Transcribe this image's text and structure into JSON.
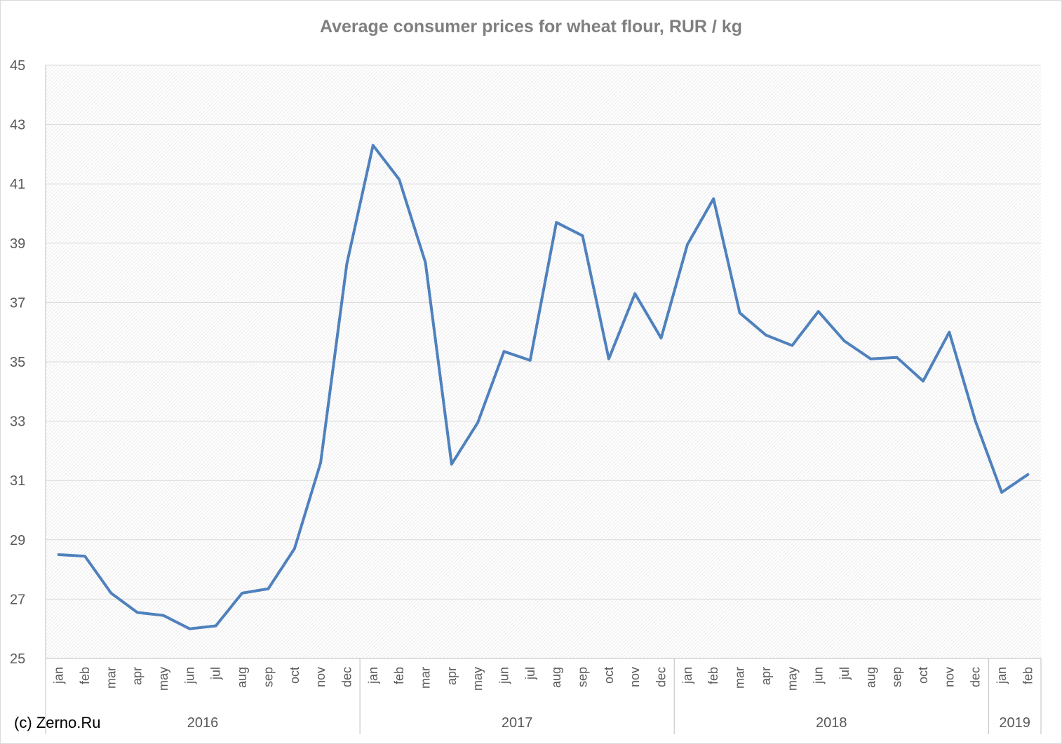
{
  "copyright": "(c) Zerno.Ru",
  "colors": {
    "line": "#4f81bd",
    "grid": "#d9d9d9",
    "axis": "#bfbfbf",
    "text": "#595959",
    "title": "#7f7f7f"
  },
  "chart_data": {
    "type": "line",
    "title": "Average consumer prices for wheat flour, RUR / kg",
    "xlabel": "",
    "ylabel": "",
    "ylim": [
      25,
      45
    ],
    "yticks": [
      25,
      27,
      29,
      31,
      33,
      35,
      37,
      39,
      41,
      43,
      45
    ],
    "grid": true,
    "legend": "none",
    "categories": [
      "jan",
      "feb",
      "mar",
      "apr",
      "may",
      "jun",
      "jul",
      "aug",
      "sep",
      "oct",
      "nov",
      "dec",
      "jan",
      "feb",
      "mar",
      "apr",
      "may",
      "jun",
      "jul",
      "aug",
      "sep",
      "oct",
      "nov",
      "dec",
      "jan",
      "feb",
      "mar",
      "apr",
      "may",
      "jun",
      "jul",
      "aug",
      "sep",
      "oct",
      "nov",
      "dec",
      "jan",
      "feb"
    ],
    "groups": [
      {
        "label": "2016",
        "count": 12
      },
      {
        "label": "2017",
        "count": 12
      },
      {
        "label": "2018",
        "count": 12
      },
      {
        "label": "2019",
        "count": 2
      }
    ],
    "series": [
      {
        "values": [
          28.5,
          28.45,
          27.2,
          26.55,
          26.45,
          26.0,
          26.1,
          27.2,
          27.35,
          28.7,
          31.6,
          38.3,
          42.3,
          41.15,
          38.35,
          31.55,
          32.95,
          35.35,
          35.05,
          39.7,
          39.25,
          35.1,
          37.3,
          35.8,
          38.95,
          40.5,
          36.65,
          35.9,
          35.55,
          36.7,
          35.7,
          35.1,
          35.15,
          34.35,
          36.0,
          33.0,
          30.6,
          31.2
        ]
      }
    ]
  }
}
